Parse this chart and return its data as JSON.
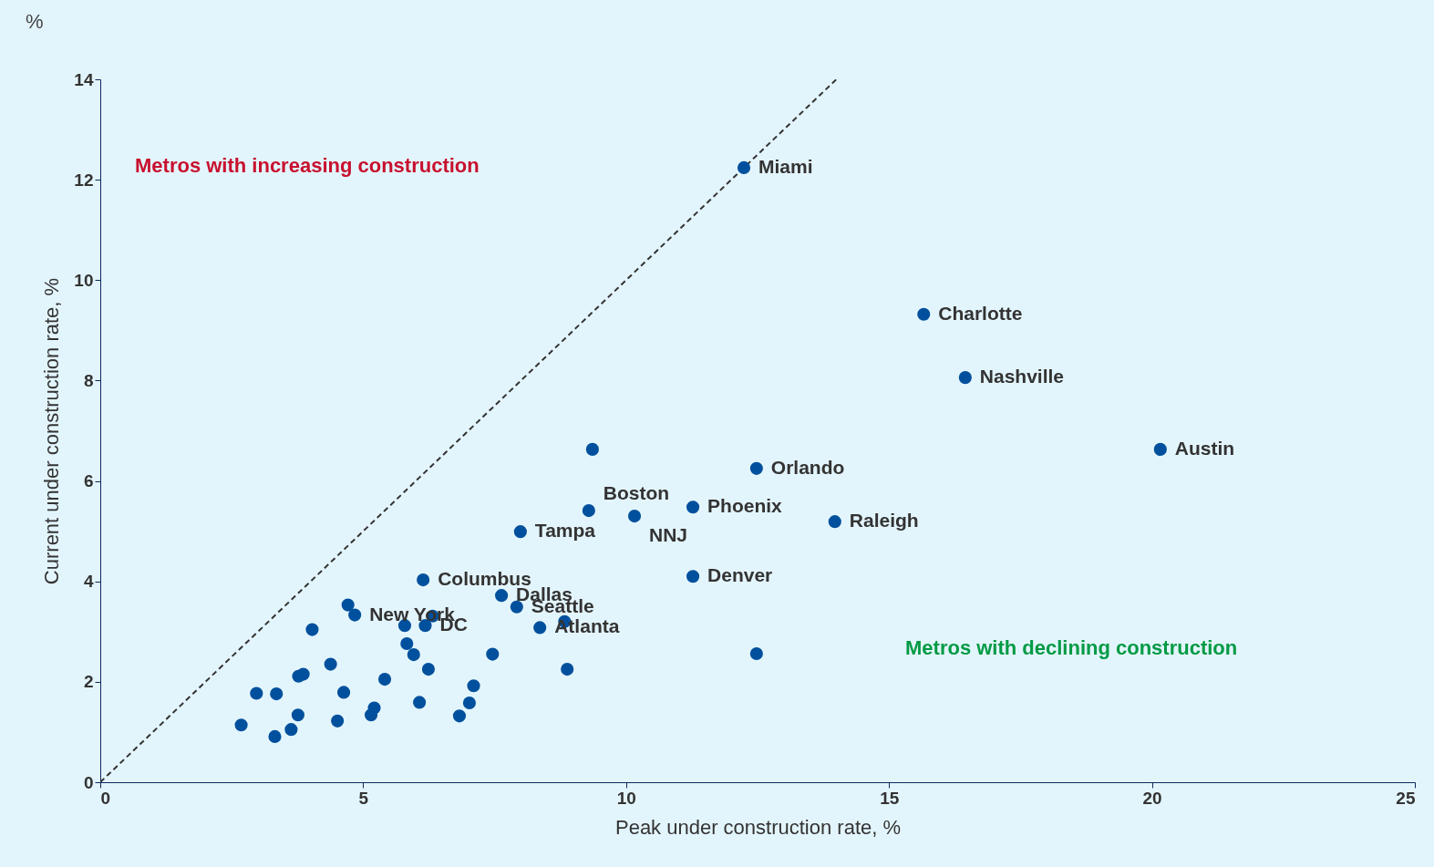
{
  "chart_data": {
    "type": "scatter",
    "xlabel": "Peak under construction rate, %",
    "ylabel": "Current under construction rate, %",
    "annotations": [
      "%",
      "Metros with increasing construction",
      "Metros with declining construction"
    ],
    "xlim": [
      0,
      25
    ],
    "ylim": [
      0,
      14
    ],
    "xticks": [
      0,
      5,
      10,
      15,
      20,
      25
    ],
    "yticks": [
      0,
      2,
      4,
      6,
      8,
      10,
      12,
      14
    ],
    "grid": false,
    "series": [
      {
        "type": "line",
        "color": "#333333",
        "line_style": "dashed",
        "marker": "none",
        "x": [
          0,
          14
        ],
        "values": [
          0,
          14
        ]
      },
      {
        "color": "#00509d",
        "marker": "circle",
        "x": [
          12.24,
          15.66,
          16.45,
          20.16,
          12.48,
          11.27,
          13.97,
          9.29,
          10.16,
          7.99,
          11.27,
          6.14,
          7.63,
          7.92,
          8.36,
          4.84,
          6.18,
          9.36,
          8.83,
          12.48,
          8.88,
          4.71,
          4.03,
          5.79,
          6.32,
          5.83,
          5.96,
          6.24,
          7.46,
          4.38,
          3.77,
          3.86,
          2.97,
          3.35,
          4.63,
          5.41,
          7.1,
          7.02,
          6.07,
          6.83,
          5.21,
          5.15,
          4.51,
          3.76,
          3.63,
          3.32,
          2.68
        ],
        "values": [
          12.24,
          9.32,
          8.06,
          6.63,
          6.25,
          5.48,
          5.19,
          5.41,
          5.3,
          4.99,
          4.1,
          4.03,
          3.72,
          3.49,
          3.08,
          3.33,
          3.12,
          6.63,
          3.2,
          2.56,
          2.25,
          3.53,
          3.04,
          3.12,
          3.31,
          2.76,
          2.54,
          2.25,
          2.55,
          2.35,
          2.11,
          2.15,
          1.77,
          1.76,
          1.79,
          2.05,
          1.92,
          1.58,
          1.59,
          1.32,
          1.48,
          1.34,
          1.22,
          1.34,
          1.05,
          0.91,
          1.14
        ],
        "value_labels": [
          "Miami",
          "Charlotte",
          "Nashville",
          "Austin",
          "Orlando",
          "Phoenix",
          "Raleigh",
          "Boston",
          "NNJ",
          "Tampa",
          "Denver",
          "Columbus",
          "Dallas",
          "Seattle",
          "Atlanta",
          "New York",
          "DC",
          null,
          null,
          null,
          null,
          null,
          null,
          null,
          null,
          null,
          null,
          null,
          null,
          null,
          null,
          null,
          null,
          null,
          null,
          null,
          null,
          null,
          null,
          null,
          null,
          null,
          null,
          null,
          null,
          null,
          null
        ]
      }
    ]
  }
}
